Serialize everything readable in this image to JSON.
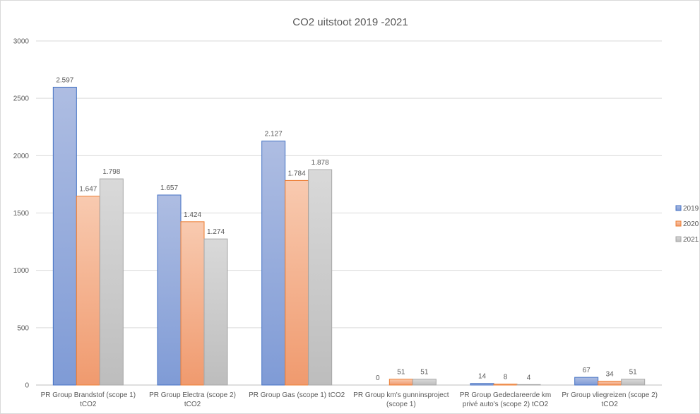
{
  "chart_data": {
    "type": "bar",
    "title": "CO2 uitstoot 2019 -2021",
    "xlabel": "",
    "ylabel": "",
    "ylim": [
      0,
      3000
    ],
    "yticks": [
      "0",
      "500",
      "1000",
      "1500",
      "2000",
      "2500",
      "3000"
    ],
    "grid": true,
    "legend_position": "right",
    "categories": [
      [
        "PR Group Brandstof (scope 1)",
        "tCO2"
      ],
      [
        "PR Group Electra (scope 2)",
        "tCO2"
      ],
      [
        "PR Group Gas (scope 1) tCO2"
      ],
      [
        "PR Group km's gunninsproject",
        "(scope 1)"
      ],
      [
        "PR Group Gedeclareerde km",
        "privé auto's (scope 2) tCO2"
      ],
      [
        "Pr Group vliegreizen (scope 2)",
        "tCO2"
      ]
    ],
    "series": [
      {
        "name": "2019",
        "color": "#8faadc",
        "values": [
          2597,
          1657,
          2127,
          0,
          14,
          67
        ],
        "labels": [
          "2.597",
          "1.657",
          "2.127",
          "0",
          "14",
          "67"
        ]
      },
      {
        "name": "2020",
        "color": "#f4b183",
        "values": [
          1647,
          1424,
          1784,
          51,
          8,
          34
        ],
        "labels": [
          "1.647",
          "1.424",
          "1.784",
          "51",
          "8",
          "34"
        ]
      },
      {
        "name": "2021",
        "color": "#c9c9c9",
        "values": [
          1798,
          1274,
          1878,
          51,
          4,
          51
        ],
        "labels": [
          "1.798",
          "1.274",
          "1.878",
          "51",
          "4",
          "51"
        ]
      }
    ]
  }
}
